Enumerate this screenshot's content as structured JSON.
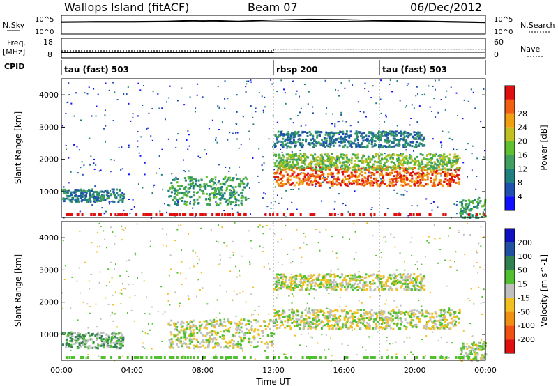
{
  "header": {
    "title": "Wallops Island (fitACF)",
    "beam": "Beam 07",
    "date": "06/Dec/2012"
  },
  "chart_data": [
    {
      "type": "line",
      "name_panel": "sky-noise",
      "left_label": "N.Sky",
      "right_label": "N.Search",
      "left_ticks": [
        "10^5",
        "10^0"
      ],
      "right_ticks": [
        "10^5",
        "10^0"
      ],
      "x": [
        "00:00",
        "02:00",
        "04:00",
        "06:00",
        "08:00",
        "10:00",
        "12:00",
        "14:00",
        "16:00",
        "18:00",
        "20:00",
        "22:00",
        "24:00"
      ],
      "series": [
        {
          "values": [
            3.4,
            3.5,
            3.5,
            3.6,
            3.9,
            3.6,
            4.0,
            4.2,
            4.1,
            3.8,
            3.7,
            3.5,
            3.3
          ]
        },
        {
          "values": [
            3.2,
            3.3,
            3.3,
            3.4,
            3.6,
            3.4,
            3.5,
            3.6,
            3.6,
            3.5,
            3.5,
            3.3,
            3.1
          ]
        }
      ]
    },
    {
      "type": "line",
      "name_panel": "frequency",
      "left_label": "Freq.",
      "left_unit": "[MHz]",
      "right_label": "Nave",
      "left_ticks": [
        "18",
        "8"
      ],
      "right_ticks": [
        "60",
        "0"
      ],
      "x": [
        0,
        12,
        12,
        24
      ],
      "series": [
        {
          "values": [
            10.4,
            10.4,
            10.6,
            10.6
          ]
        },
        {
          "values": [
            20,
            20,
            26,
            26
          ]
        }
      ]
    },
    {
      "type": "table",
      "name_panel": "cpid",
      "label": "CPID",
      "segments": [
        {
          "name": "tau (fast) 503",
          "start": 0,
          "end": 12
        },
        {
          "name": "rbsp 200",
          "start": 12,
          "end": 18
        },
        {
          "name": "tau (fast) 503",
          "start": 18,
          "end": 24
        }
      ]
    },
    {
      "type": "heatmap",
      "name_panel": "power",
      "ylabel": "Slant Range [km]",
      "yticks": [
        "1000",
        "2000",
        "3000",
        "4000"
      ],
      "ylim": [
        200,
        4500
      ],
      "colorbar_label": "Power [dB]",
      "colorbar_ticks": [
        "4",
        "8",
        "12",
        "16",
        "20",
        "24",
        "28"
      ],
      "colors": [
        "#1010ff",
        "#2050b0",
        "#208080",
        "#40a060",
        "#60c030",
        "#c0c020",
        "#f0a010",
        "#f06010",
        "#e01010"
      ],
      "echo_bands": [
        {
          "t0": 0.0,
          "t1": 3.5,
          "r0": 700,
          "r1": 1100,
          "level": 2
        },
        {
          "t0": 6.0,
          "t1": 10.5,
          "r0": 600,
          "r1": 1500,
          "level": 3
        },
        {
          "t0": 12.0,
          "t1": 20.5,
          "r0": 2400,
          "r1": 2900,
          "level": 2
        },
        {
          "t0": 12.0,
          "t1": 22.5,
          "r0": 1200,
          "r1": 1800,
          "level": 7
        },
        {
          "t0": 12.0,
          "t1": 22.5,
          "r0": 1700,
          "r1": 2200,
          "level": 4
        },
        {
          "t0": 22.5,
          "t1": 24.0,
          "r0": 200,
          "r1": 800,
          "level": 3
        }
      ]
    },
    {
      "type": "heatmap",
      "name_panel": "velocity",
      "ylabel": "Slant Range [km]",
      "yticks": [
        "1000",
        "2000",
        "3000",
        "4000"
      ],
      "ylim": [
        200,
        4500
      ],
      "colorbar_label": "Velocity [m s^-1]",
      "colorbar_ticks": [
        "200",
        "100",
        "50",
        "15",
        "-15",
        "-50",
        "-100",
        "-200"
      ],
      "colors": [
        "#1010c0",
        "#2050a0",
        "#308050",
        "#50c030",
        "#c0c0c0",
        "#f0c020",
        "#f09010",
        "#f05010",
        "#e01010"
      ],
      "xlabel": "Time UT",
      "xticks": [
        "00:00",
        "04:00",
        "08:00",
        "12:00",
        "16:00",
        "20:00",
        "00:00"
      ],
      "echo_bands": [
        {
          "t0": 0.0,
          "t1": 3.5,
          "r0": 600,
          "r1": 1100,
          "level": 3
        },
        {
          "t0": 6.0,
          "t1": 12.0,
          "r0": 600,
          "r1": 1500,
          "level": 4
        },
        {
          "t0": 12.0,
          "t1": 20.5,
          "r0": 2400,
          "r1": 2900,
          "level": 4
        },
        {
          "t0": 12.0,
          "t1": 22.5,
          "r0": 1200,
          "r1": 1800,
          "level": 4
        },
        {
          "t0": 22.5,
          "t1": 24.0,
          "r0": 200,
          "r1": 800,
          "level": 4
        }
      ]
    }
  ]
}
